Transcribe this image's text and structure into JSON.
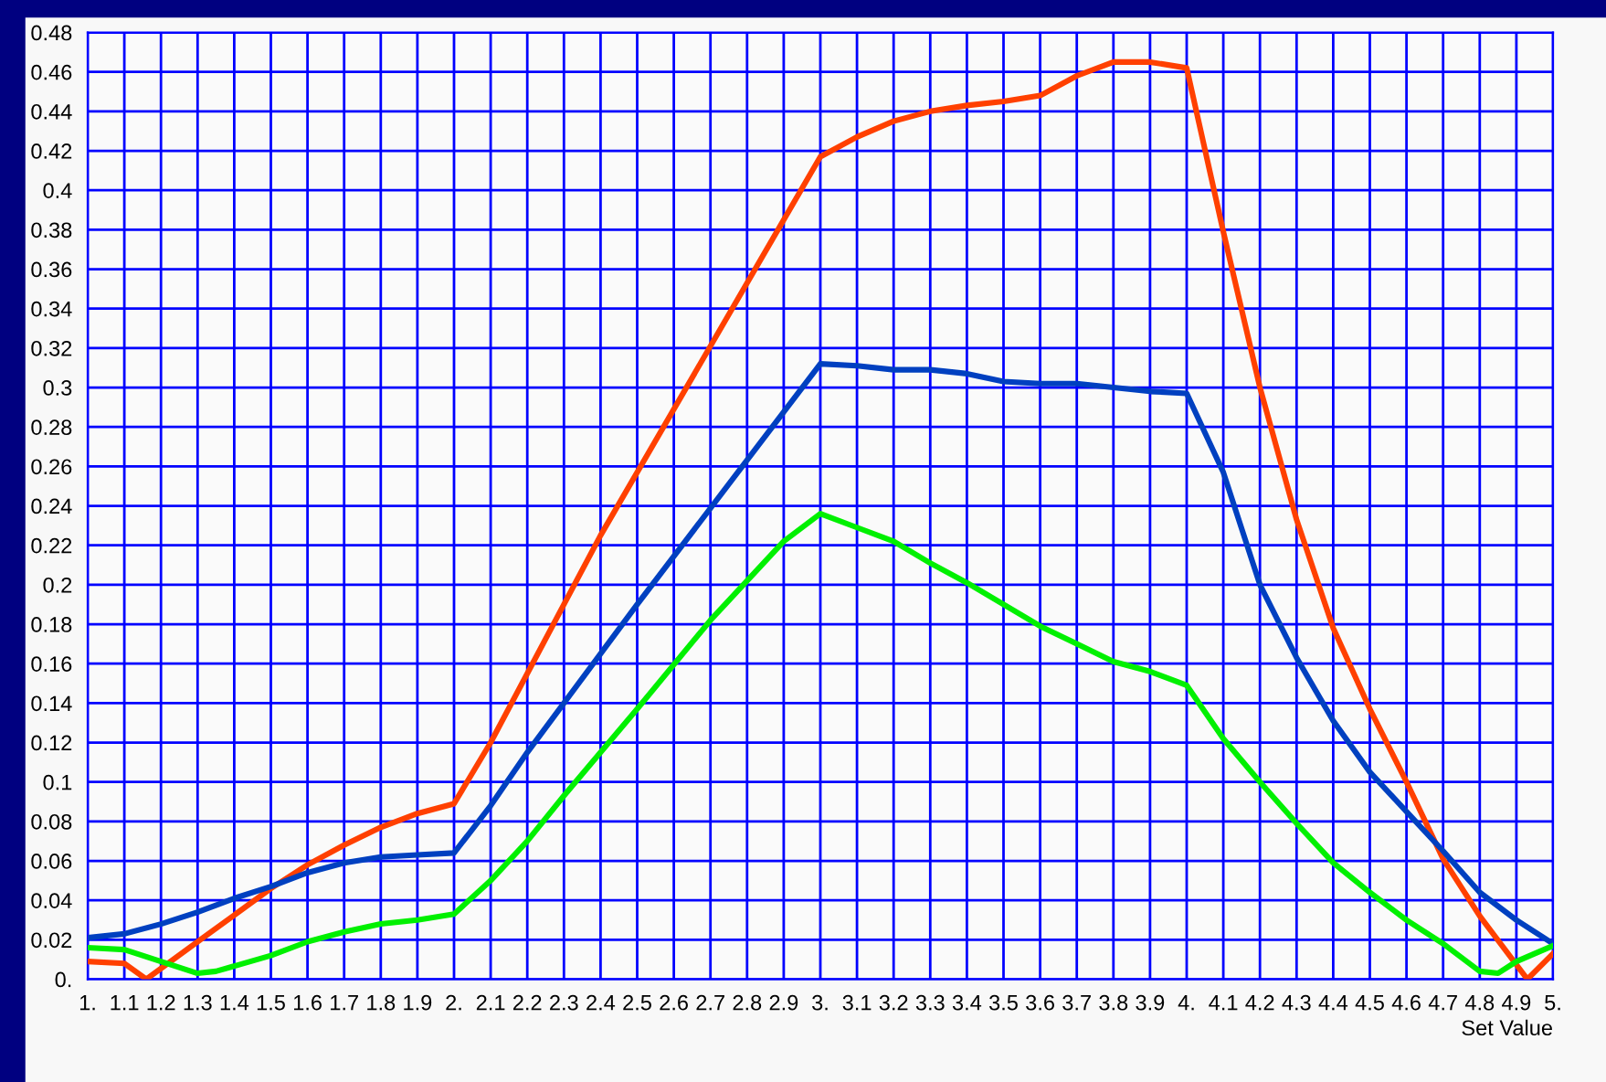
{
  "chart_data": {
    "type": "line",
    "xlabel": "Set Value",
    "xlim": [
      1,
      5
    ],
    "ylim": [
      0,
      0.48
    ],
    "xticks": [
      {
        "value": 1,
        "label": "1."
      },
      1.1,
      1.2,
      1.3,
      1.4,
      1.5,
      1.6,
      1.7,
      1.8,
      1.9,
      {
        "value": 2,
        "label": "2."
      },
      2.1,
      2.2,
      2.3,
      2.4,
      2.5,
      2.6,
      2.7,
      2.8,
      2.9,
      {
        "value": 3,
        "label": "3."
      },
      3.1,
      3.2,
      3.3,
      3.4,
      3.5,
      3.6,
      3.7,
      3.8,
      3.9,
      {
        "value": 4,
        "label": "4."
      },
      4.1,
      4.2,
      4.3,
      4.4,
      4.5,
      4.6,
      4.7,
      4.8,
      4.9,
      {
        "value": 5,
        "label": "5."
      }
    ],
    "yticks": [
      {
        "value": 0,
        "label": "0."
      },
      0.02,
      0.04,
      0.06,
      0.08,
      0.1,
      0.12,
      0.14,
      0.16,
      0.18,
      0.2,
      0.22,
      0.24,
      0.26,
      0.28,
      0.3,
      0.32,
      0.34,
      0.36,
      0.38,
      0.4,
      0.42,
      0.44,
      0.46,
      0.48
    ],
    "grid": true,
    "marker": "none",
    "line_style": "solid",
    "series": [
      {
        "color": "#ff4000",
        "x": [
          1.0,
          1.1,
          1.16,
          1.3,
          1.5,
          1.6,
          1.7,
          1.8,
          1.9,
          2.0,
          2.1,
          2.2,
          2.3,
          2.4,
          3.0,
          3.1,
          3.2,
          3.3,
          3.4,
          3.5,
          3.6,
          3.7,
          3.8,
          3.9,
          4.0,
          4.1,
          4.2,
          4.3,
          4.4,
          4.5,
          4.6,
          4.7,
          4.8,
          4.93,
          5.0
        ],
        "values": [
          0.009,
          0.008,
          0.0,
          0.019,
          0.046,
          0.058,
          0.068,
          0.077,
          0.084,
          0.089,
          0.12,
          0.155,
          0.19,
          0.225,
          0.417,
          0.427,
          0.435,
          0.44,
          0.443,
          0.445,
          0.448,
          0.458,
          0.465,
          0.465,
          0.462,
          0.379,
          0.3,
          0.233,
          0.178,
          0.137,
          0.1,
          0.061,
          0.032,
          0.0,
          0.013
        ]
      },
      {
        "color": "#0040c0",
        "x": [
          1.0,
          1.1,
          1.2,
          1.3,
          1.4,
          1.5,
          1.6,
          1.7,
          1.8,
          1.9,
          2.0,
          2.1,
          2.2,
          2.3,
          2.4,
          2.5,
          3.0,
          3.1,
          3.2,
          3.3,
          3.4,
          3.5,
          3.6,
          3.7,
          3.8,
          3.9,
          4.0,
          4.1,
          4.2,
          4.3,
          4.4,
          4.5,
          4.6,
          4.7,
          4.8,
          4.9,
          5.0
        ],
        "values": [
          0.021,
          0.023,
          0.028,
          0.034,
          0.041,
          0.047,
          0.054,
          0.059,
          0.062,
          0.063,
          0.064,
          0.088,
          0.115,
          0.14,
          0.165,
          0.19,
          0.312,
          0.311,
          0.309,
          0.309,
          0.307,
          0.303,
          0.302,
          0.302,
          0.3,
          0.298,
          0.297,
          0.257,
          0.2,
          0.163,
          0.131,
          0.105,
          0.085,
          0.065,
          0.044,
          0.03,
          0.018
        ]
      },
      {
        "color": "#00f000",
        "x": [
          1.0,
          1.1,
          1.2,
          1.3,
          1.35,
          1.5,
          1.6,
          1.7,
          1.8,
          1.9,
          2.0,
          2.1,
          2.2,
          2.3,
          2.5,
          2.7,
          2.9,
          3.0,
          3.1,
          3.2,
          3.3,
          3.4,
          3.5,
          3.6,
          3.7,
          3.8,
          3.9,
          4.0,
          4.1,
          4.2,
          4.3,
          4.4,
          4.5,
          4.6,
          4.7,
          4.8,
          4.85,
          4.9,
          5.0
        ],
        "values": [
          0.016,
          0.015,
          0.009,
          0.003,
          0.004,
          0.012,
          0.019,
          0.024,
          0.028,
          0.03,
          0.033,
          0.05,
          0.07,
          0.093,
          0.137,
          0.182,
          0.222,
          0.236,
          0.229,
          0.222,
          0.211,
          0.201,
          0.19,
          0.179,
          0.17,
          0.161,
          0.156,
          0.149,
          0.122,
          0.1,
          0.079,
          0.059,
          0.044,
          0.03,
          0.018,
          0.004,
          0.003,
          0.009,
          0.017
        ]
      }
    ]
  }
}
